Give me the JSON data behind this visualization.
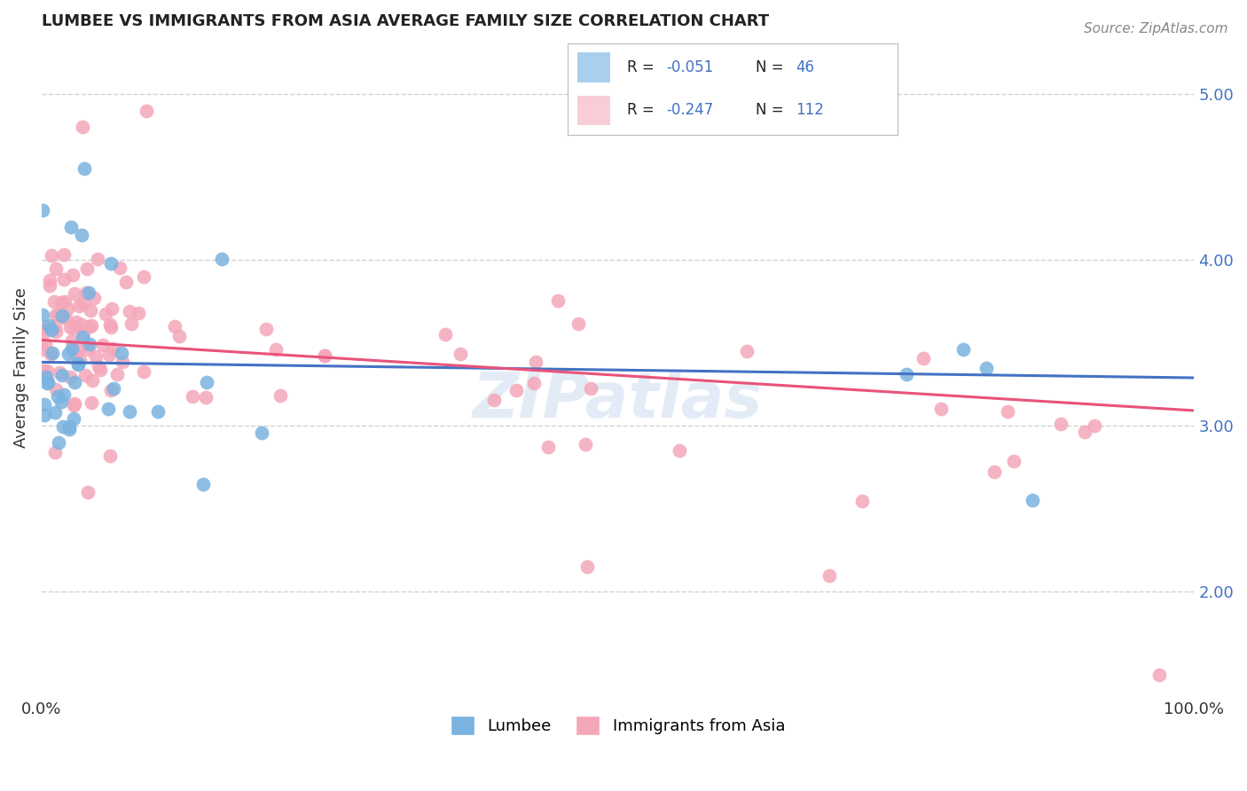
{
  "title": "LUMBEE VS IMMIGRANTS FROM ASIA AVERAGE FAMILY SIZE CORRELATION CHART",
  "source": "Source: ZipAtlas.com",
  "ylabel": "Average Family Size",
  "xlim": [
    0.0,
    1.0
  ],
  "ylim": [
    1.4,
    5.3
  ],
  "yticks_right": [
    2.0,
    3.0,
    4.0,
    5.0
  ],
  "background_color": "#ffffff",
  "grid_color": "#cccccc",
  "watermark": "ZIPatlas",
  "series": [
    {
      "name": "Lumbee",
      "color": "#7ab3e0",
      "fill_color": "#aacfee",
      "R": -0.051,
      "N": 46,
      "line_color": "#4472c4"
    },
    {
      "name": "Immigrants from Asia",
      "color": "#f4a7b9",
      "fill_color": "#f9cdd8",
      "R": -0.247,
      "N": 112,
      "line_color": "#e8537a"
    }
  ]
}
